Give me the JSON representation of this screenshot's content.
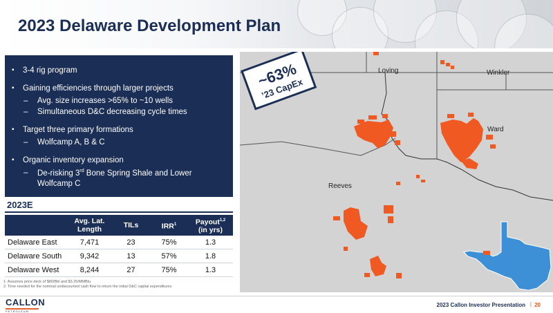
{
  "title": "2023 Delaware Development Plan",
  "bullets": [
    {
      "text": "3-4 rig program"
    },
    {
      "text": "Gaining efficiencies through larger projects",
      "subs": [
        "Avg. size increases >65% to ~10 wells",
        "Simultaneous D&C decreasing cycle times"
      ]
    },
    {
      "text": "Target three primary formations",
      "subs": [
        "Wolfcamp A, B & C"
      ]
    },
    {
      "text": "Organic inventory expansion",
      "subs": [
        "De-risking 3",
        "rd",
        " Bone Spring Shale and Lower",
        "Wolfcamp C"
      ]
    }
  ],
  "section_title": "2023E",
  "table": {
    "headers": {
      "col0": "",
      "col1_line1": "Avg. Lat.",
      "col1_line2": "Length",
      "col2": "TILs",
      "col3": "IRR",
      "col3_sup": "1",
      "col4_line1": "Payout",
      "col4_sup": "1,2",
      "col4_line2": "(in yrs)"
    },
    "rows": [
      {
        "name": "Delaware East",
        "length": "7,471",
        "tils": "23",
        "irr": "75%",
        "payout": "1.3"
      },
      {
        "name": "Delaware South",
        "length": "9,342",
        "tils": "13",
        "irr": "57%",
        "payout": "1.8"
      },
      {
        "name": "Delaware West",
        "length": "8,244",
        "tils": "27",
        "irr": "75%",
        "payout": "1.3"
      }
    ]
  },
  "footnotes": [
    "1. Assumes price deck of $80/Bbl and $3.25/MMBtu",
    "2. Time needed for the nominal undiscounted cash flow to return the initial D&C capital expenditures"
  ],
  "map": {
    "callout_pct": "~63%",
    "callout_label": "’23 CapEx",
    "counties": {
      "loving": "Loving",
      "winkler": "Winkler",
      "ward": "Ward",
      "reeves": "Reeves"
    }
  },
  "logo": {
    "name": "CALLON",
    "sub": "PETROLEUM"
  },
  "footer": {
    "text": "2023 Callon Investor Presentation",
    "sep": "|",
    "page": "20"
  },
  "colors": {
    "navy": "#1b2e55",
    "orange": "#f05a22",
    "map_gray": "#d3d3d3",
    "texas_blue": "#3d8fd6"
  }
}
